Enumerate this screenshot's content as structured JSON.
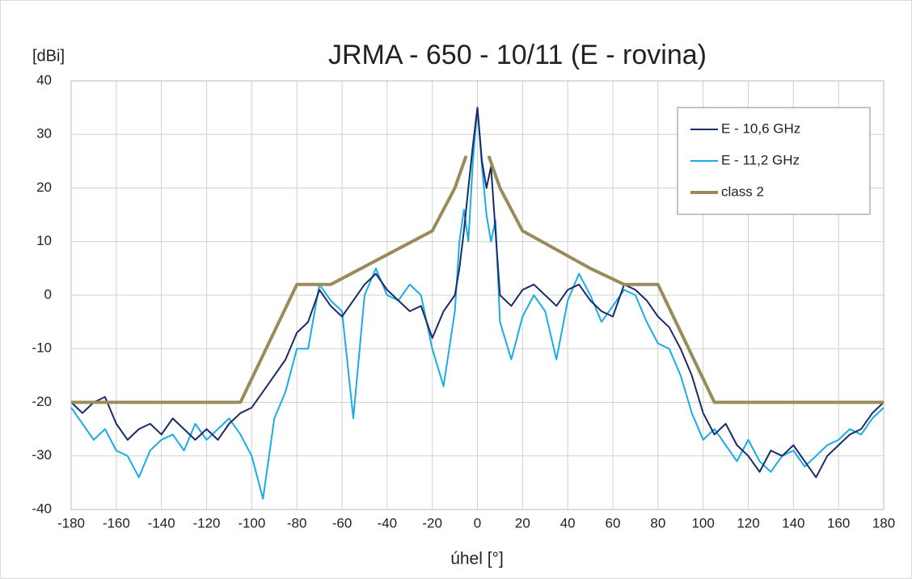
{
  "chart_data": {
    "type": "line",
    "title": "JRMA - 650 - 10/11 (E - rovina)",
    "y_label": "[dBi]",
    "x_label": "úhel [°]",
    "x": [
      -180,
      -175,
      -170,
      -165,
      -160,
      -155,
      -150,
      -145,
      -140,
      -135,
      -130,
      -125,
      -120,
      -115,
      -110,
      -105,
      -100,
      -95,
      -90,
      -85,
      -80,
      -75,
      -70,
      -65,
      -60,
      -55,
      -50,
      -45,
      -40,
      -35,
      -30,
      -25,
      -20,
      -15,
      -10,
      -8,
      -6,
      -4,
      -2,
      0,
      2,
      4,
      6,
      8,
      10,
      15,
      20,
      25,
      30,
      35,
      40,
      45,
      50,
      55,
      60,
      65,
      70,
      75,
      80,
      85,
      90,
      95,
      100,
      105,
      110,
      115,
      120,
      125,
      130,
      135,
      140,
      145,
      150,
      155,
      160,
      165,
      170,
      175,
      180
    ],
    "series": [
      {
        "name": "E - 10,6 GHz",
        "color": "#1b2a68",
        "values": [
          -20,
          -22,
          -20,
          -19,
          -24,
          -27,
          -25,
          -24,
          -26,
          -23,
          -25,
          -27,
          -25,
          -27,
          -24,
          -22,
          -21,
          -18,
          -15,
          -12,
          -7,
          -5,
          1,
          -2,
          -4,
          -1,
          2,
          4,
          1,
          -1,
          -3,
          -2,
          -8,
          -3,
          0,
          5,
          12,
          20,
          28,
          35,
          25,
          20,
          24,
          12,
          0,
          -2,
          1,
          2,
          0,
          -2,
          1,
          2,
          -1,
          -3,
          -4,
          2,
          1,
          -1,
          -4,
          -6,
          -10,
          -15,
          -22,
          -26,
          -24,
          -28,
          -30,
          -33,
          -29,
          -30,
          -28,
          -31,
          -34,
          -30,
          -28,
          -26,
          -25,
          -22,
          -20
        ]
      },
      {
        "name": "E - 11,2 GHz",
        "color": "#19ace6",
        "values": [
          -21,
          -24,
          -27,
          -25,
          -29,
          -30,
          -34,
          -29,
          -27,
          -26,
          -29,
          -24,
          -27,
          -25,
          -23,
          -26,
          -30,
          -38,
          -23,
          -18,
          -10,
          -10,
          2,
          -1,
          -3,
          -23,
          0,
          5,
          0,
          -1,
          2,
          0,
          -10,
          -17,
          -3,
          10,
          16,
          10,
          25,
          35,
          24,
          15,
          10,
          14,
          -5,
          -12,
          -4,
          0,
          -3,
          -12,
          -1,
          4,
          0,
          -5,
          -2,
          1,
          0,
          -5,
          -9,
          -10,
          -15,
          -22,
          -27,
          -25,
          -28,
          -31,
          -27,
          -31,
          -33,
          -30,
          -29,
          -32,
          -30,
          -28,
          -27,
          -25,
          -26,
          -23,
          -21
        ]
      },
      {
        "name": "class 2",
        "color": "#9a8c5a",
        "x": [
          -180,
          -105,
          -80,
          -65,
          -20,
          -10,
          -5,
          null,
          5,
          10,
          20,
          50,
          65,
          80,
          105,
          180
        ],
        "values": [
          -20,
          -20,
          2,
          2,
          12,
          20,
          26,
          null,
          26,
          20,
          12,
          5,
          2,
          2,
          -20,
          -20
        ]
      }
    ],
    "xlim": [
      -180,
      180
    ],
    "xticks": [
      -180,
      -160,
      -140,
      -120,
      -100,
      -80,
      -60,
      -40,
      -20,
      0,
      20,
      40,
      60,
      80,
      100,
      120,
      140,
      160,
      180
    ],
    "ylim": [
      -40,
      40
    ],
    "yticks": [
      -40,
      -30,
      -20,
      -10,
      0,
      10,
      20,
      30,
      40
    ],
    "grid": true,
    "legend": "upper right"
  }
}
